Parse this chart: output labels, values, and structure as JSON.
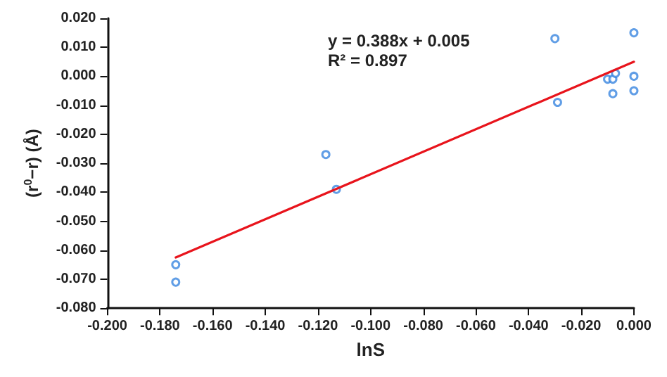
{
  "chart_data": {
    "type": "scatter",
    "xlabel": "lnS",
    "ylabel": "(r$^{0}$−r) (Å)",
    "annotations": [
      "y = 0.388x + 0.005\nR² = 0.897"
    ],
    "series": [
      {
        "color": "#3a86e0",
        "marker": "circle",
        "x": [
          -0.174,
          -0.174,
          -0.117,
          -0.113,
          -0.03,
          -0.029,
          -0.01,
          -0.008,
          -0.007,
          -0.008,
          0.0,
          0.0,
          0.0
        ],
        "values": [
          -0.065,
          -0.071,
          -0.027,
          -0.039,
          0.013,
          -0.009,
          -0.001,
          -0.001,
          0.001,
          -0.006,
          0.015,
          0.0,
          -0.005
        ]
      },
      {
        "type": "line",
        "color": "#e8141c",
        "marker": "none",
        "x": [
          -0.174,
          0.0
        ],
        "values": [
          -0.0625,
          0.005
        ]
      }
    ],
    "xlim": [
      -0.2,
      0
    ],
    "xticks": [
      {
        "value": -0.2,
        "label": "-0.200"
      },
      {
        "value": -0.18,
        "label": "-0.180"
      },
      {
        "value": -0.16,
        "label": "-0.160"
      },
      {
        "value": -0.14,
        "label": "-0.140"
      },
      {
        "value": -0.12,
        "label": "-0.120"
      },
      {
        "value": -0.1,
        "label": "-0.100"
      },
      {
        "value": -0.08,
        "label": "-0.080"
      },
      {
        "value": -0.06,
        "label": "-0.060"
      },
      {
        "value": -0.04,
        "label": "-0.040"
      },
      {
        "value": -0.02,
        "label": "-0.020"
      },
      {
        "value": 0,
        "label": "0.000"
      }
    ],
    "ylim": [
      -0.08,
      0.02
    ],
    "yticks": [
      {
        "value": -0.08,
        "label": "-0.080"
      },
      {
        "value": -0.07,
        "label": "-0.070"
      },
      {
        "value": -0.06,
        "label": "-0.060"
      },
      {
        "value": -0.05,
        "label": "-0.050"
      },
      {
        "value": -0.04,
        "label": "-0.040"
      },
      {
        "value": -0.03,
        "label": "-0.030"
      },
      {
        "value": -0.02,
        "label": "-0.020"
      },
      {
        "value": -0.01,
        "label": "-0.010"
      },
      {
        "value": 0,
        "label": "0.000"
      },
      {
        "value": 0.01,
        "label": "0.010"
      },
      {
        "value": 0.02,
        "label": "0.020"
      }
    ],
    "grid": false
  }
}
